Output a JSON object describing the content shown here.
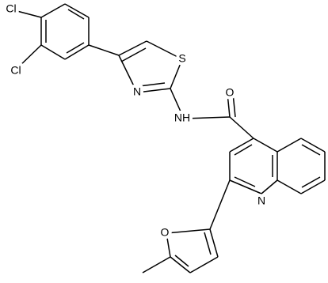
{
  "atoms": [
    {
      "label": "Cl"
    },
    {
      "label": "Cl"
    },
    {
      "label": "S"
    },
    {
      "label": "N"
    },
    {
      "label": "NH"
    },
    {
      "label": "O"
    },
    {
      "label": "N"
    },
    {
      "label": "O"
    }
  ]
}
